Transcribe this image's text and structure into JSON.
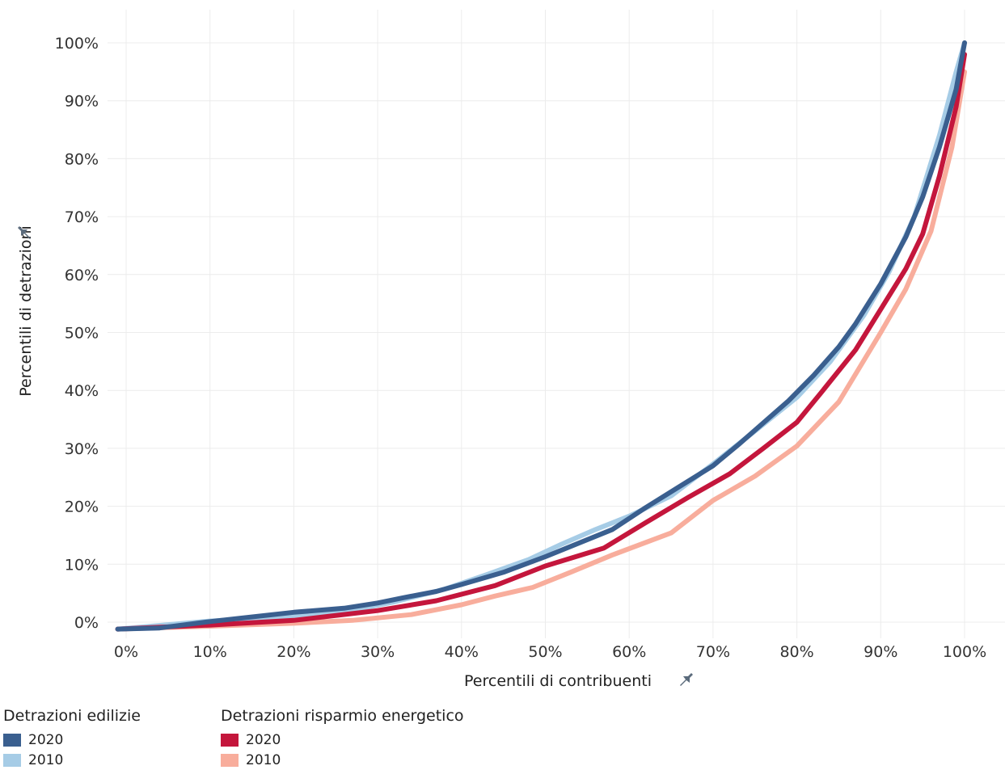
{
  "chart_data": {
    "type": "line",
    "xlabel": "Percentili di contribuenti",
    "ylabel": "Percentili di detrazioni",
    "xlim": [
      0,
      100
    ],
    "ylim": [
      0,
      100
    ],
    "x_ticks": [
      "0%",
      "10%",
      "20%",
      "30%",
      "40%",
      "50%",
      "60%",
      "70%",
      "80%",
      "90%",
      "100%"
    ],
    "y_ticks": [
      "0%",
      "10%",
      "20%",
      "30%",
      "40%",
      "50%",
      "60%",
      "70%",
      "80%",
      "90%",
      "100%"
    ],
    "grid": true,
    "legend_position": "bottom-left",
    "pin_icon": "pin-icon",
    "legend_groups": [
      {
        "title": "Detrazioni edilizie",
        "entries": [
          {
            "name": "2020",
            "color": "#3a5f8f"
          },
          {
            "name": "2010",
            "color": "#a6cce6"
          }
        ]
      },
      {
        "title": "Detrazioni risparmio energetico",
        "entries": [
          {
            "name": "2020",
            "color": "#c4163c"
          },
          {
            "name": "2010",
            "color": "#f8ad9c"
          }
        ]
      }
    ],
    "series": [
      {
        "group": "Detrazioni risparmio energetico",
        "name": "2010",
        "color": "#f8ad9c",
        "points": [
          [
            -1,
            -1.2
          ],
          [
            10,
            -0.7
          ],
          [
            20,
            -0.2
          ],
          [
            27,
            0.3
          ],
          [
            34,
            1.3
          ],
          [
            40,
            3
          ],
          [
            44,
            4.5
          ],
          [
            48.5,
            6
          ],
          [
            53,
            8.6
          ],
          [
            58,
            11.6
          ],
          [
            65,
            15.4
          ],
          [
            70,
            21
          ],
          [
            75,
            25.2
          ],
          [
            80,
            30.4
          ],
          [
            85,
            38
          ],
          [
            90,
            50
          ],
          [
            93,
            57.5
          ],
          [
            96,
            67.5
          ],
          [
            98.5,
            82
          ],
          [
            100,
            95
          ]
        ]
      },
      {
        "group": "Detrazioni edilizie",
        "name": "2010",
        "color": "#a6cce6",
        "points": [
          [
            -1,
            -1.2
          ],
          [
            10,
            0.2
          ],
          [
            20,
            1
          ],
          [
            26,
            1.8
          ],
          [
            32,
            3.5
          ],
          [
            38,
            5.7
          ],
          [
            43,
            8.2
          ],
          [
            48,
            10.8
          ],
          [
            52,
            13.5
          ],
          [
            56,
            16
          ],
          [
            60,
            18.3
          ],
          [
            65,
            21.8
          ],
          [
            70,
            27.3
          ],
          [
            75,
            33
          ],
          [
            80,
            38.8
          ],
          [
            84,
            45
          ],
          [
            88,
            53
          ],
          [
            91,
            60.5
          ],
          [
            94,
            70
          ],
          [
            97,
            84
          ],
          [
            99,
            95
          ],
          [
            100,
            100
          ]
        ]
      },
      {
        "group": "Detrazioni risparmio energetico",
        "name": "2020",
        "color": "#c4163c",
        "points": [
          [
            -1,
            -1.2
          ],
          [
            10,
            -0.5
          ],
          [
            20,
            0.3
          ],
          [
            30,
            2
          ],
          [
            37,
            3.7
          ],
          [
            44,
            6.3
          ],
          [
            50,
            9.7
          ],
          [
            57,
            12.8
          ],
          [
            62,
            17.2
          ],
          [
            67,
            21.5
          ],
          [
            72,
            25.6
          ],
          [
            76,
            30
          ],
          [
            80,
            34.5
          ],
          [
            83,
            39.8
          ],
          [
            87,
            47
          ],
          [
            90,
            54
          ],
          [
            93,
            61
          ],
          [
            95,
            67
          ],
          [
            97,
            77
          ],
          [
            99,
            89
          ],
          [
            100,
            98
          ]
        ]
      },
      {
        "group": "Detrazioni edilizie",
        "name": "2020",
        "color": "#3a5f8f",
        "points": [
          [
            -1,
            -1.2
          ],
          [
            4,
            -1
          ],
          [
            10,
            0.1
          ],
          [
            20,
            1.7
          ],
          [
            26,
            2.4
          ],
          [
            30,
            3.3
          ],
          [
            33,
            4.2
          ],
          [
            37,
            5.3
          ],
          [
            40,
            6.5
          ],
          [
            45,
            8.6
          ],
          [
            50,
            11.3
          ],
          [
            58,
            16
          ],
          [
            62,
            19.8
          ],
          [
            66,
            23.4
          ],
          [
            70,
            27
          ],
          [
            73,
            30.6
          ],
          [
            76,
            34.4
          ],
          [
            79,
            38.2
          ],
          [
            82,
            42.6
          ],
          [
            85,
            47.5
          ],
          [
            87,
            51.5
          ],
          [
            90,
            58.4
          ],
          [
            93,
            66.5
          ],
          [
            95,
            73.4
          ],
          [
            97,
            82
          ],
          [
            99,
            92
          ],
          [
            100,
            100
          ]
        ]
      }
    ]
  }
}
